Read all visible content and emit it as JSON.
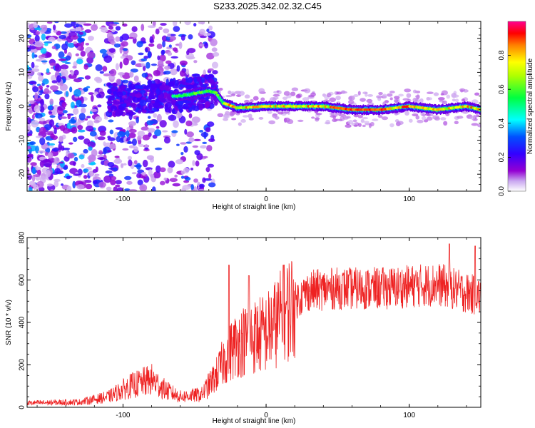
{
  "title": "S233.2025.342.02.32.C45",
  "chart_data": [
    {
      "type": "heatmap",
      "name": "spectrogram",
      "xlabel": "Height of straight line (km)",
      "ylabel": "Frequency (Hz)",
      "xlim": [
        -167,
        150
      ],
      "ylim": [
        -25,
        25
      ],
      "xticks": [
        -100,
        0,
        100
      ],
      "yticks": [
        -20,
        -10,
        0,
        10,
        20
      ],
      "colorbar": {
        "label": "Normalized spectral amplitude",
        "range": [
          0,
          1
        ],
        "ticks": [
          "0.0",
          "0.2",
          "0.4",
          "0.6",
          "0.8"
        ],
        "colors": [
          "#ffffff",
          "#9400d3",
          "#4b00ff",
          "#0000ff",
          "#00ffff",
          "#00ff00",
          "#ffff00",
          "#ff8000",
          "#ff0000",
          "#ff00c0"
        ]
      },
      "ridge": {
        "description_points": [
          {
            "x": -90,
            "y": 2
          },
          {
            "x": -75,
            "y": 3
          },
          {
            "x": -60,
            "y": 3
          },
          {
            "x": -40,
            "y": 4.5
          },
          {
            "x": -35,
            "y": 4
          },
          {
            "x": -30,
            "y": 1
          },
          {
            "x": -20,
            "y": -0.5
          },
          {
            "x": 0,
            "y": 0
          },
          {
            "x": 40,
            "y": 0
          },
          {
            "x": 60,
            "y": -1
          },
          {
            "x": 80,
            "y": -1
          },
          {
            "x": 100,
            "y": 0
          },
          {
            "x": 120,
            "y": -1
          },
          {
            "x": 140,
            "y": 0
          },
          {
            "x": 150,
            "y": -1
          }
        ],
        "peak_amplitude_range_km": [
          0,
          150
        ]
      }
    },
    {
      "type": "line",
      "name": "snr",
      "xlabel": "Height of straight line (km)",
      "ylabel": "SNR (10 * v/v)",
      "xlim": [
        -167,
        150
      ],
      "ylim": [
        0,
        800
      ],
      "xticks": [
        -100,
        0,
        100
      ],
      "yticks": [
        0,
        200,
        400,
        600,
        800
      ],
      "color": "#ff0000",
      "envelope": [
        {
          "x": -167,
          "y": 20
        },
        {
          "x": -130,
          "y": 25
        },
        {
          "x": -110,
          "y": 50
        },
        {
          "x": -95,
          "y": 100
        },
        {
          "x": -80,
          "y": 130
        },
        {
          "x": -70,
          "y": 80
        },
        {
          "x": -60,
          "y": 50
        },
        {
          "x": -45,
          "y": 60
        },
        {
          "x": -35,
          "y": 150
        },
        {
          "x": -27,
          "y": 250
        },
        {
          "x": -20,
          "y": 300
        },
        {
          "x": -10,
          "y": 330
        },
        {
          "x": 0,
          "y": 350
        },
        {
          "x": 10,
          "y": 420
        },
        {
          "x": 20,
          "y": 500
        },
        {
          "x": 30,
          "y": 550
        },
        {
          "x": 50,
          "y": 560
        },
        {
          "x": 80,
          "y": 560
        },
        {
          "x": 100,
          "y": 570
        },
        {
          "x": 120,
          "y": 580
        },
        {
          "x": 140,
          "y": 540
        },
        {
          "x": 150,
          "y": 520
        }
      ],
      "spikes": [
        {
          "x": -26,
          "y": 670
        },
        {
          "x": -12,
          "y": 620
        },
        {
          "x": 12,
          "y": 670
        },
        {
          "x": 128,
          "y": 770
        },
        {
          "x": 146,
          "y": 760
        }
      ]
    }
  ]
}
